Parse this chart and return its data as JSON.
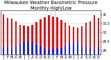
{
  "title": "Milwaukee Weather Barometric Pressure",
  "subtitle": "Monthly High/Low",
  "months": [
    "J",
    "F",
    "M",
    "A",
    "M",
    "J",
    "J",
    "A",
    "S",
    "O",
    "N",
    "D",
    "J",
    "F",
    "M",
    "A",
    "M",
    "J",
    "J",
    "A",
    "S",
    "O",
    "N",
    "D"
  ],
  "highs": [
    30.98,
    30.78,
    30.75,
    30.62,
    30.42,
    30.38,
    30.35,
    30.4,
    30.55,
    30.72,
    30.85,
    30.95,
    30.88,
    30.82,
    30.68,
    30.52,
    30.38,
    30.3,
    30.28,
    30.32,
    30.52,
    30.62,
    30.95,
    30.78
  ],
  "lows": [
    29.2,
    29.15,
    29.1,
    29.25,
    29.35,
    29.45,
    29.5,
    29.48,
    29.3,
    29.22,
    29.1,
    29.05,
    29.08,
    29.12,
    29.18,
    29.28,
    29.38,
    29.42,
    29.48,
    29.15,
    29.25,
    29.18,
    29.05,
    29.2
  ],
  "high_color": "#dd1111",
  "low_color": "#2222cc",
  "ylim_min": 28.8,
  "ylim_max": 31.2,
  "yticks": [
    29.0,
    29.5,
    30.0,
    30.5,
    31.0
  ],
  "ytick_labels": [
    "29",
    "29.5",
    "30",
    "30.5",
    "31"
  ],
  "background_color": "#ffffff",
  "title_fontsize": 4.8,
  "tick_fontsize": 3.5,
  "bar_width": 0.42
}
